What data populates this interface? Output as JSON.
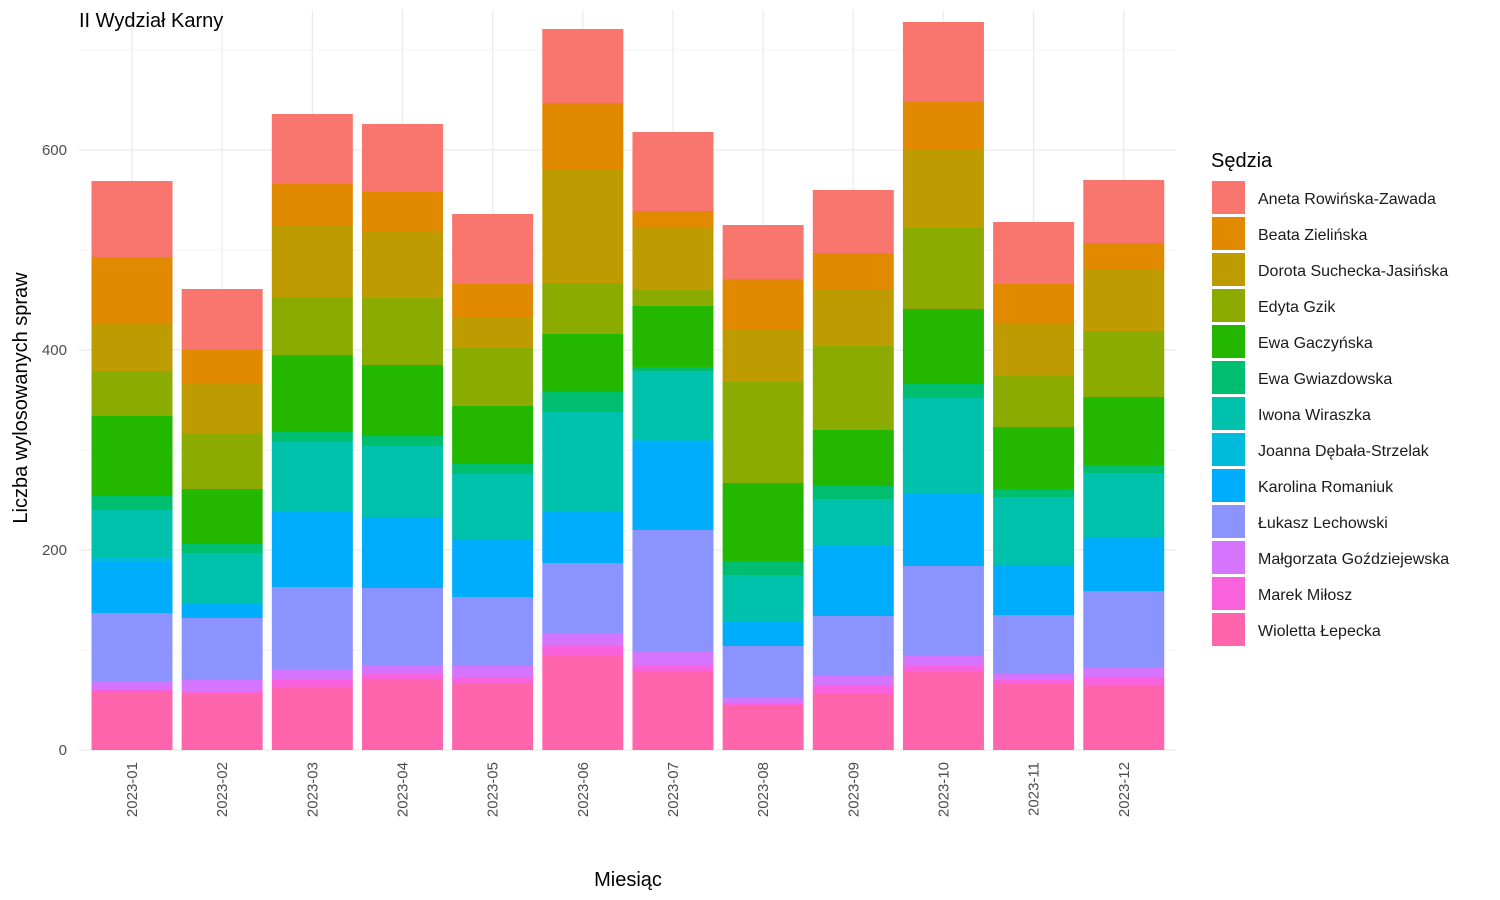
{
  "chart_data": {
    "type": "bar",
    "stacked": true,
    "title": "II Wydział Karny",
    "xlabel": "Miesiąc",
    "ylabel": "Liczba wylosowanych spraw",
    "ylim": [
      0,
      740
    ],
    "yticks": [
      0,
      200,
      400,
      600
    ],
    "grid": true,
    "legend_title": "Sędzia",
    "legend_position": "right",
    "categories": [
      "2023-01",
      "2023-02",
      "2023-03",
      "2023-04",
      "2023-05",
      "2023-06",
      "2023-07",
      "2023-08",
      "2023-09",
      "2023-10",
      "2023-11",
      "2023-12"
    ],
    "series": [
      {
        "name": "Aneta Rowińska-Zawada",
        "color": "#F8766D",
        "values": [
          76,
          61,
          70,
          68,
          70,
          74,
          79,
          54,
          63,
          80,
          62,
          63
        ]
      },
      {
        "name": "Beata Zielińska",
        "color": "#E18A00",
        "values": [
          67,
          33,
          42,
          40,
          34,
          67,
          16,
          51,
          36,
          48,
          40,
          27
        ]
      },
      {
        "name": "Dorota Suchecka-Jasińska",
        "color": "#BE9C00",
        "values": [
          47,
          50,
          71,
          66,
          30,
          113,
          63,
          52,
          57,
          78,
          52,
          61
        ]
      },
      {
        "name": "Edyta Gzik",
        "color": "#8CAB00",
        "values": [
          45,
          56,
          58,
          67,
          58,
          51,
          16,
          101,
          84,
          81,
          51,
          66
        ]
      },
      {
        "name": "Ewa Gaczyńska",
        "color": "#24B700",
        "values": [
          80,
          55,
          77,
          71,
          58,
          58,
          61,
          78,
          56,
          75,
          62,
          68
        ]
      },
      {
        "name": "Ewa Gwiazdowska",
        "color": "#00BE70",
        "values": [
          14,
          9,
          10,
          10,
          10,
          20,
          4,
          14,
          13,
          14,
          8,
          8
        ]
      },
      {
        "name": "Iwona Wiraszka",
        "color": "#00C1AB",
        "values": [
          47,
          51,
          70,
          71,
          65,
          100,
          68,
          47,
          47,
          96,
          68,
          64
        ]
      },
      {
        "name": "Joanna Dębała-Strzelak",
        "color": "#00BBDA",
        "values": [
          5,
          0,
          0,
          0,
          0,
          0,
          2,
          0,
          0,
          0,
          0,
          0
        ]
      },
      {
        "name": "Karolina Romaniuk",
        "color": "#00ACFC",
        "values": [
          51,
          14,
          75,
          71,
          58,
          51,
          89,
          24,
          70,
          72,
          50,
          54
        ]
      },
      {
        "name": "Łukasz Lechowski",
        "color": "#8B93FF",
        "values": [
          68,
          62,
          82,
          77,
          69,
          70,
          121,
          52,
          60,
          89,
          59,
          76
        ]
      },
      {
        "name": "Małgorzata Goździejewska",
        "color": "#D575FE",
        "values": [
          8,
          12,
          11,
          8,
          11,
          13,
          14,
          5,
          10,
          11,
          6,
          10
        ]
      },
      {
        "name": "Marek Miłosz",
        "color": "#F962DD",
        "values": [
          2,
          2,
          7,
          6,
          6,
          9,
          6,
          2,
          7,
          5,
          3,
          8
        ]
      },
      {
        "name": "Wioletta Łepecka",
        "color": "#FF65AC",
        "values": [
          59,
          56,
          63,
          71,
          67,
          95,
          79,
          45,
          57,
          79,
          67,
          65
        ]
      }
    ]
  }
}
